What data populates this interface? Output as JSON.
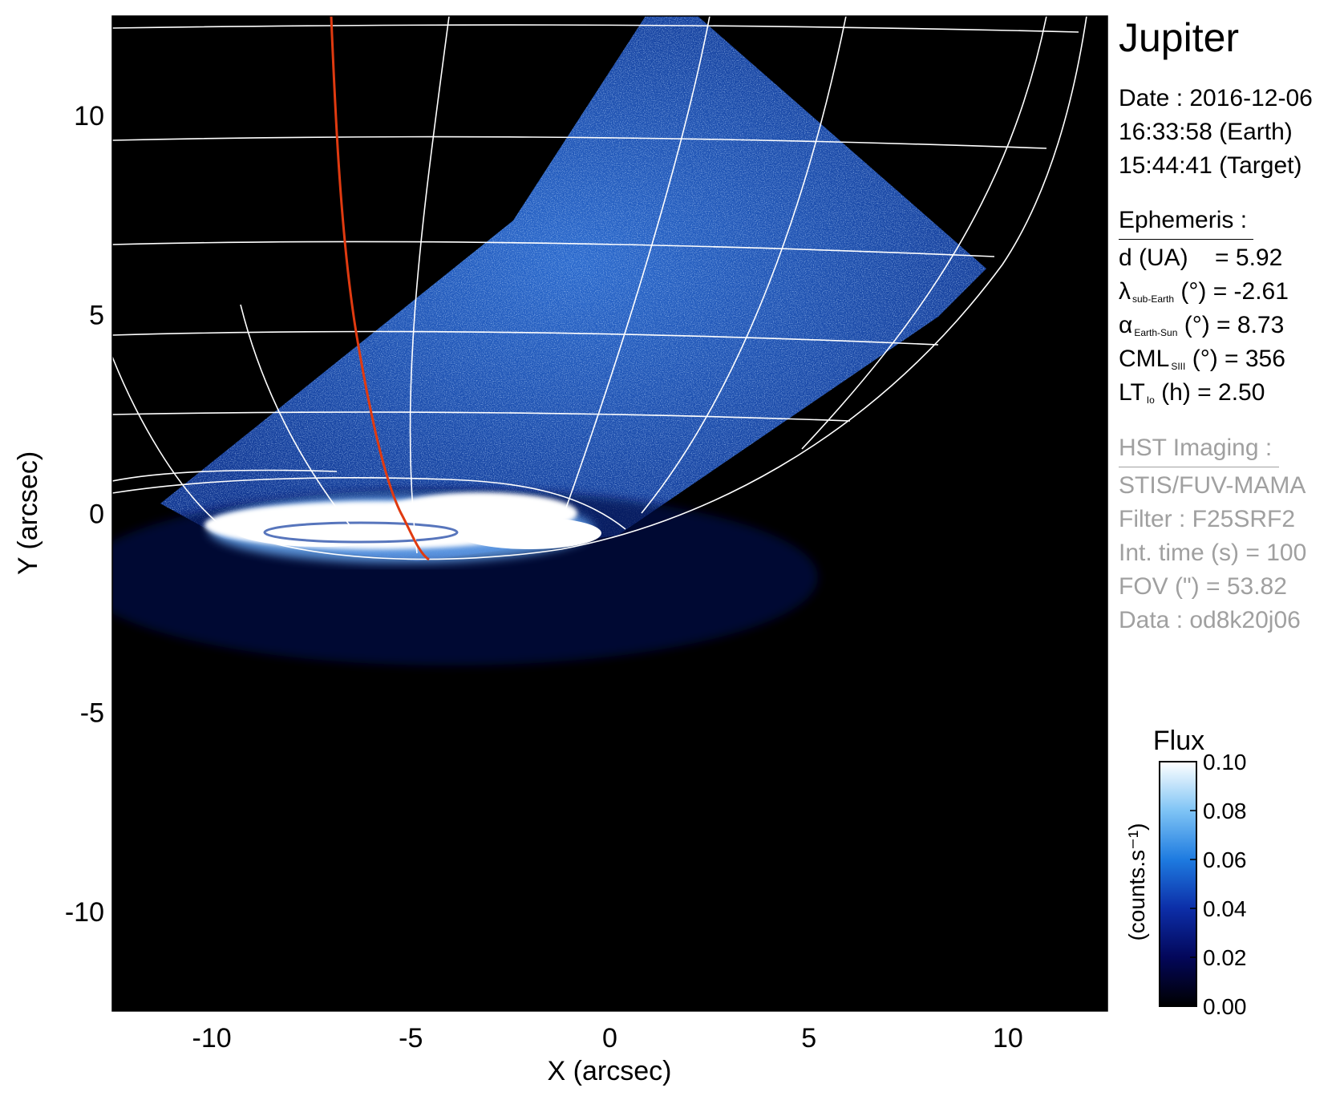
{
  "title": "Jupiter",
  "date_block": {
    "date": "Date : 2016-12-06",
    "time_earth": "16:33:58 (Earth)",
    "time_target": "15:44:41 (Target)"
  },
  "ephemeris": {
    "heading": "Ephemeris :",
    "d_label": "d (UA)",
    "d_value": "= 5.92",
    "lambda_sym": "λ",
    "lambda_sub": "sub-Earth",
    "lambda_rest": "(°) = -2.61",
    "alpha_sym": "α",
    "alpha_sub": "Earth-Sun",
    "alpha_rest": "(°) = 8.73",
    "cml_sym": "CML",
    "cml_sub": "SIII",
    "cml_rest": "(°) = 356",
    "lt_sym": "LT",
    "lt_sub": "Io",
    "lt_rest": "(h) = 2.50"
  },
  "hst": {
    "heading": "HST Imaging :",
    "instrument": "STIS/FUV-MAMA",
    "filter": "Filter : F25SRF2",
    "int_time": "Int. time (s) = 100",
    "fov": "FOV (\") = 53.82",
    "data": "Data : od8k20j06"
  },
  "axes": {
    "x_label": "X (arcsec)",
    "y_label": "Y (arcsec)",
    "x_ticks": [
      "-10",
      "-5",
      "0",
      "5",
      "10"
    ],
    "x_tick_values": [
      -10,
      -5,
      0,
      5,
      10
    ],
    "y_ticks": [
      "10",
      "5",
      "0",
      "-5",
      "-10"
    ],
    "y_tick_values": [
      10,
      5,
      0,
      -5,
      -10
    ],
    "range": [
      -12.5,
      12.5
    ]
  },
  "colorbar": {
    "title": "Flux",
    "unit_label": "(counts.s⁻¹)",
    "ticks": [
      "0.10",
      "0.08",
      "0.06",
      "0.04",
      "0.02",
      "0.00"
    ],
    "tick_values": [
      0.1,
      0.08,
      0.06,
      0.04,
      0.02,
      0.0
    ],
    "range": [
      0.0,
      0.1
    ]
  },
  "colors": {
    "background": "#000000",
    "emission_blue": "#1a55c8",
    "aurora_white": "#ffffff",
    "grid": "#ffffff",
    "footprint_line": "#e03a10",
    "metadata_gray": "#a0a0a0"
  }
}
